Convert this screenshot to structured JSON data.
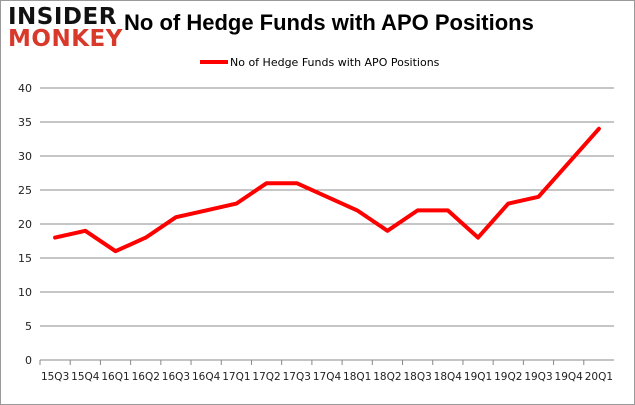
{
  "logo": {
    "line1": "INSIDER",
    "line2": "MONKEY"
  },
  "chart_data": {
    "type": "line",
    "title": "No of Hedge Funds with APO Positions",
    "categories": [
      "15Q3",
      "15Q4",
      "16Q1",
      "16Q2",
      "16Q3",
      "16Q4",
      "17Q1",
      "17Q2",
      "17Q3",
      "17Q4",
      "18Q1",
      "18Q2",
      "18Q3",
      "18Q4",
      "19Q1",
      "19Q2",
      "19Q3",
      "19Q4",
      "20Q1"
    ],
    "series": [
      {
        "name": "No of Hedge Funds with APO Positions",
        "values": [
          18,
          19,
          16,
          18,
          21,
          22,
          23,
          26,
          26,
          24,
          22,
          19,
          22,
          22,
          18,
          23,
          24,
          29,
          34
        ],
        "color": "#ff0000"
      }
    ],
    "ylim": [
      0,
      40
    ],
    "yticks": [
      0,
      5,
      10,
      15,
      20,
      25,
      30,
      35,
      40
    ],
    "grid": true,
    "legend": "top-center",
    "xlabel": "",
    "ylabel": ""
  }
}
